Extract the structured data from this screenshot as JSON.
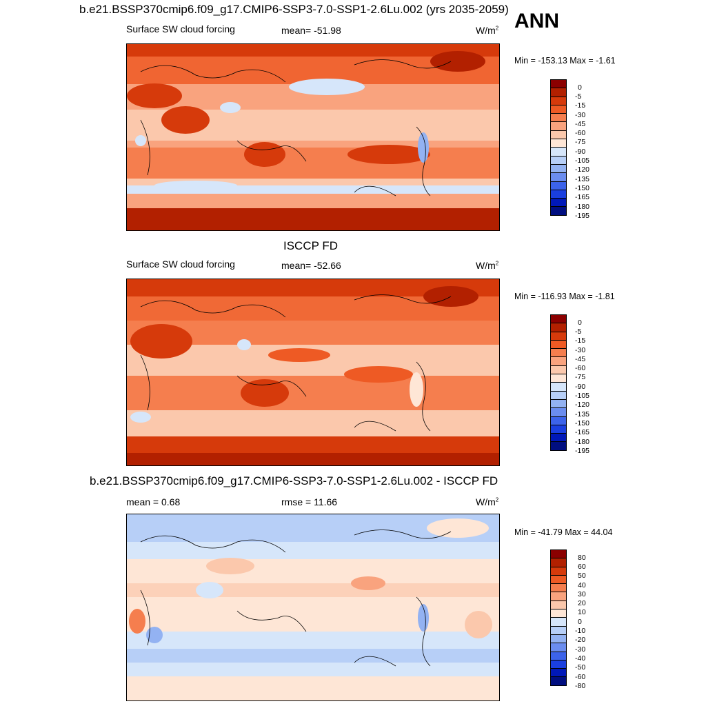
{
  "top_title": "b.e21.BSSP370cmip6.f09_g17.CMIP6-SSP3-7.0-SSP1-2.6Lu.002 (yrs 2035-2059)",
  "season": "ANN",
  "panels": [
    {
      "title": "",
      "left": "Surface SW cloud forcing",
      "center": "mean= -51.98",
      "units": "W/m",
      "units_sup": "2",
      "minmax": "Min = -153.13 Max =  -1.61",
      "map_variant": "model"
    },
    {
      "title": "ISCCP FD",
      "left": "Surface SW cloud forcing",
      "center": "mean= -52.66",
      "units": "W/m",
      "units_sup": "2",
      "minmax": "Min = -116.93 Max =  -1.81",
      "map_variant": "obs"
    },
    {
      "title": "b.e21.BSSP370cmip6.f09_g17.CMIP6-SSP3-7.0-SSP1-2.6Lu.002 - ISCCP FD",
      "left": "mean =   0.68",
      "center": "rmse =  11.66",
      "units": "W/m",
      "units_sup": "2",
      "minmax": "Min = -41.79 Max =  44.04",
      "map_variant": "diff"
    }
  ],
  "colorbars": {
    "abs": {
      "labels": [
        "0",
        "-5",
        "-15",
        "-30",
        "-45",
        "-60",
        "-75",
        "-90",
        "-105",
        "-120",
        "-135",
        "-150",
        "-165",
        "-180",
        "-195"
      ],
      "colors": [
        "#8b0000",
        "#b22000",
        "#d63a0b",
        "#ee5a24",
        "#f57e4e",
        "#f9a37e",
        "#fbc8ac",
        "#fee6d6",
        "#d6e6fa",
        "#b7cff7",
        "#93b2f2",
        "#6b8def",
        "#3c63ea",
        "#1a3fe0",
        "#0018b8",
        "#000e80"
      ]
    },
    "diff": {
      "labels": [
        "80",
        "60",
        "50",
        "40",
        "30",
        "20",
        "10",
        "0",
        "-10",
        "-20",
        "-30",
        "-40",
        "-50",
        "-60",
        "-80"
      ],
      "colors": [
        "#8b0000",
        "#b22000",
        "#d63a0b",
        "#ee5a24",
        "#f57e4e",
        "#f9a37e",
        "#fbc8ac",
        "#fee6d6",
        "#d6e6fa",
        "#b7cff7",
        "#93b2f2",
        "#6b8def",
        "#3c63ea",
        "#1a3fe0",
        "#0018b8",
        "#000e80"
      ]
    }
  }
}
